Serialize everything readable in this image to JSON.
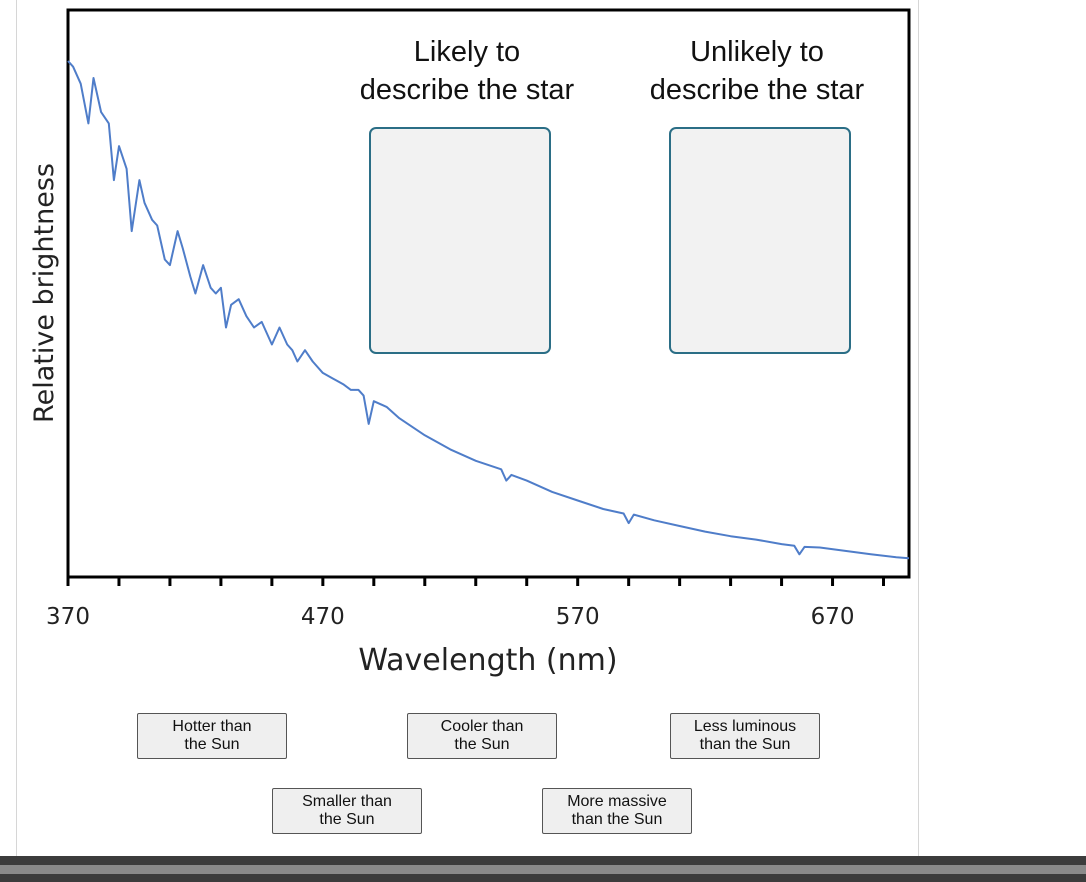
{
  "chart_data": {
    "type": "line",
    "title": "",
    "xlabel": "Wavelength (nm)",
    "ylabel": "Relative brightness",
    "xlim": [
      370,
      700
    ],
    "ylim": [
      0,
      1
    ],
    "x_tick_labels": [
      "370",
      "470",
      "570",
      "670"
    ],
    "x_tick_values": [
      370,
      470,
      570,
      670
    ],
    "grid": false,
    "legend": "none",
    "line_color": "#4f7dc9",
    "series": [
      {
        "x": [
          370,
          372,
          375,
          378,
          380,
          383,
          386,
          388,
          390,
          393,
          395,
          398,
          400,
          403,
          405,
          408,
          410,
          413,
          415,
          418,
          420,
          423,
          426,
          428,
          430,
          432,
          434,
          437,
          440,
          443,
          446,
          450,
          453,
          456,
          458,
          460,
          463,
          466,
          470,
          474,
          478,
          481,
          484,
          486,
          488,
          490,
          495,
          500,
          510,
          520,
          530,
          540,
          542,
          544,
          550,
          560,
          570,
          580,
          588,
          590,
          592,
          600,
          610,
          620,
          630,
          640,
          650,
          655,
          657,
          659,
          665,
          675,
          685,
          695,
          700
        ],
        "y": [
          0.91,
          0.9,
          0.87,
          0.8,
          0.88,
          0.82,
          0.8,
          0.7,
          0.76,
          0.72,
          0.61,
          0.7,
          0.66,
          0.63,
          0.62,
          0.56,
          0.55,
          0.61,
          0.58,
          0.53,
          0.5,
          0.55,
          0.51,
          0.5,
          0.51,
          0.44,
          0.48,
          0.49,
          0.46,
          0.44,
          0.45,
          0.41,
          0.44,
          0.41,
          0.4,
          0.38,
          0.4,
          0.38,
          0.36,
          0.35,
          0.34,
          0.33,
          0.33,
          0.32,
          0.27,
          0.31,
          0.3,
          0.28,
          0.25,
          0.225,
          0.205,
          0.19,
          0.17,
          0.18,
          0.17,
          0.15,
          0.135,
          0.12,
          0.112,
          0.095,
          0.11,
          0.1,
          0.09,
          0.08,
          0.072,
          0.066,
          0.058,
          0.055,
          0.04,
          0.053,
          0.052,
          0.046,
          0.04,
          0.035,
          0.033
        ]
      }
    ]
  },
  "zones": [
    {
      "title_line1": "Likely to",
      "title_line2": "describe the star"
    },
    {
      "title_line1": "Unlikely to",
      "title_line2": "describe the star"
    }
  ],
  "chips": [
    {
      "label": "Hotter than\nthe Sun"
    },
    {
      "label": "Cooler than\nthe Sun"
    },
    {
      "label": "Less luminous\nthan the Sun"
    },
    {
      "label": "Smaller than\nthe Sun"
    },
    {
      "label": "More massive\nthan the Sun"
    }
  ]
}
